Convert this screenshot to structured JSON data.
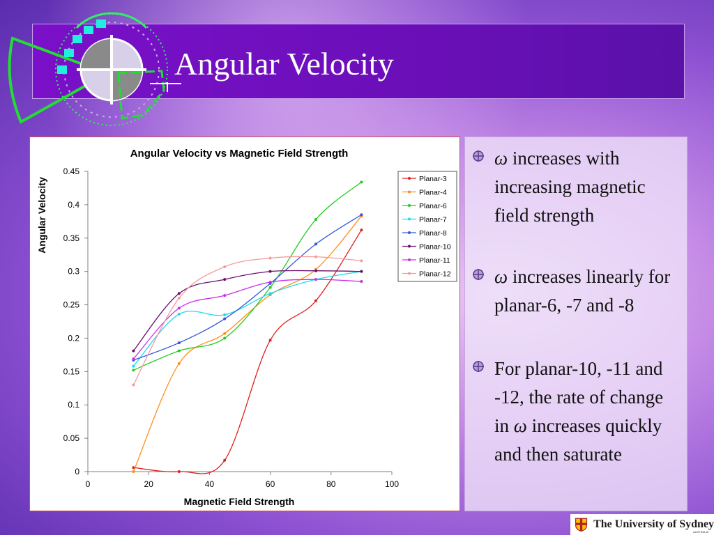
{
  "slide": {
    "title": "Angular Velocity",
    "bullets": [
      {
        "omega": "ω",
        "text": " increases with increasing magnetic field strength"
      },
      {
        "omega": "ω",
        "text": " increases linearly for planar-6, -7 and -8"
      },
      {
        "pre": "For planar-10, -11 and -12, the rate of change in ",
        "omega": "ω",
        "post": " increases quickly and then saturate"
      }
    ],
    "logo_text": "The University of Sydney",
    "logo_sub": "AUSTRALIA"
  },
  "chart_data": {
    "type": "line",
    "title": "Angular Velocity vs Magnetic Field Strength",
    "xlabel": "Magnetic Field Strength",
    "ylabel": "Angular Velocity",
    "xlim": [
      0,
      100
    ],
    "ylim": [
      0,
      0.45
    ],
    "xticks": [
      "0",
      "20",
      "40",
      "60",
      "80",
      "100"
    ],
    "yticks": [
      "0",
      "0.05",
      "0.1",
      "0.15",
      "0.2",
      "0.25",
      "0.3",
      "0.35",
      "0.4",
      "0.45"
    ],
    "x": [
      15,
      30,
      45,
      60,
      75,
      90
    ],
    "legend_position": "right",
    "grid": false,
    "series": [
      {
        "name": "Planar-3",
        "color": "#e0201c",
        "values": [
          0.006,
          0.0,
          0.017,
          0.197,
          0.256,
          0.362
        ]
      },
      {
        "name": "Planar-4",
        "color": "#ff8c1a",
        "values": [
          0.0,
          0.162,
          0.207,
          0.265,
          0.303,
          0.383
        ]
      },
      {
        "name": "Planar-6",
        "color": "#22cc22",
        "values": [
          0.152,
          0.181,
          0.2,
          0.276,
          0.378,
          0.434
        ]
      },
      {
        "name": "Planar-7",
        "color": "#1fd8f0",
        "values": [
          0.158,
          0.236,
          0.235,
          0.267,
          0.288,
          0.3
        ]
      },
      {
        "name": "Planar-8",
        "color": "#3355dd",
        "values": [
          0.167,
          0.193,
          0.229,
          0.282,
          0.341,
          0.385
        ]
      },
      {
        "name": "Planar-10",
        "color": "#6a0f6a",
        "values": [
          0.181,
          0.267,
          0.288,
          0.3,
          0.301,
          0.3
        ]
      },
      {
        "name": "Planar-11",
        "color": "#c830e8",
        "values": [
          0.169,
          0.245,
          0.264,
          0.284,
          0.288,
          0.285
        ]
      },
      {
        "name": "Planar-12",
        "color": "#f59a9a",
        "values": [
          0.13,
          0.26,
          0.307,
          0.32,
          0.322,
          0.316
        ]
      }
    ]
  }
}
